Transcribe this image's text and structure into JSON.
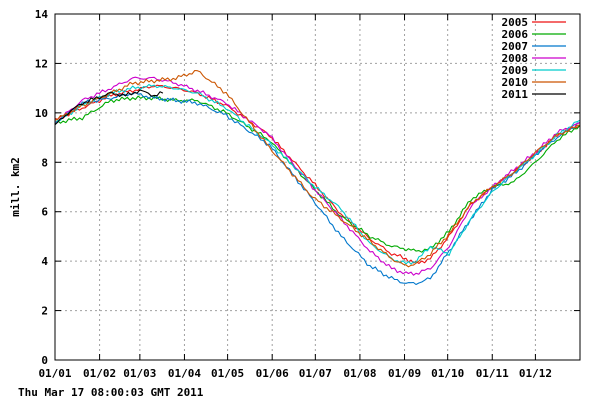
{
  "chart_data": {
    "type": "line",
    "ylabel": "mill. km2",
    "ylim": [
      0,
      14
    ],
    "yticks": [
      0,
      2,
      4,
      6,
      8,
      10,
      12,
      14
    ],
    "x_domain": [
      1,
      366
    ],
    "x_ticks": [
      {
        "label": "01/01",
        "day": 1
      },
      {
        "label": "01/02",
        "day": 32
      },
      {
        "label": "01/03",
        "day": 60
      },
      {
        "label": "01/04",
        "day": 91
      },
      {
        "label": "01/05",
        "day": 121
      },
      {
        "label": "01/06",
        "day": 152
      },
      {
        "label": "01/07",
        "day": 182
      },
      {
        "label": "01/08",
        "day": 213
      },
      {
        "label": "01/09",
        "day": 244
      },
      {
        "label": "01/10",
        "day": 274
      },
      {
        "label": "01/11",
        "day": 305
      },
      {
        "label": "01/12",
        "day": 335
      }
    ],
    "legend_position": "top-right",
    "series": [
      {
        "name": "2005",
        "color": "#ee1111",
        "x": [
          1,
          20,
          40,
          55,
          70,
          85,
          100,
          120,
          150,
          180,
          200,
          220,
          235,
          245,
          252,
          262,
          275,
          290,
          305,
          320,
          335,
          350,
          366
        ],
        "values": [
          9.7,
          10.2,
          10.7,
          10.9,
          11.1,
          11.0,
          10.8,
          10.3,
          9.1,
          7.2,
          5.9,
          4.9,
          4.3,
          4.1,
          3.9,
          4.1,
          5.0,
          6.3,
          7.0,
          7.6,
          8.3,
          9.1,
          9.5
        ]
      },
      {
        "name": "2006",
        "color": "#00aa00",
        "x": [
          1,
          20,
          40,
          55,
          70,
          85,
          100,
          120,
          150,
          180,
          200,
          220,
          235,
          245,
          252,
          262,
          275,
          290,
          305,
          320,
          335,
          350,
          366
        ],
        "values": [
          9.6,
          9.8,
          10.5,
          10.6,
          10.6,
          10.5,
          10.5,
          10.0,
          8.9,
          7.0,
          5.8,
          5.0,
          4.6,
          4.5,
          4.4,
          4.5,
          5.2,
          6.5,
          7.0,
          7.2,
          8.0,
          8.9,
          9.5
        ]
      },
      {
        "name": "2007",
        "color": "#0077cc",
        "x": [
          1,
          20,
          40,
          55,
          70,
          85,
          100,
          120,
          150,
          180,
          200,
          220,
          235,
          245,
          252,
          262,
          275,
          290,
          305,
          320,
          335,
          350,
          366
        ],
        "values": [
          9.6,
          10.4,
          10.6,
          10.8,
          10.6,
          10.5,
          10.4,
          9.9,
          8.7,
          6.5,
          5.0,
          3.8,
          3.3,
          3.1,
          3.1,
          3.3,
          4.4,
          5.7,
          6.9,
          7.5,
          8.3,
          9.0,
          9.6
        ]
      },
      {
        "name": "2008",
        "color": "#cc00cc",
        "x": [
          1,
          20,
          40,
          55,
          70,
          85,
          100,
          120,
          150,
          180,
          200,
          220,
          235,
          245,
          252,
          262,
          275,
          290,
          305,
          320,
          335,
          350,
          366
        ],
        "values": [
          9.6,
          10.5,
          11.0,
          11.4,
          11.4,
          11.2,
          10.9,
          10.4,
          9.1,
          7.0,
          5.7,
          4.4,
          3.7,
          3.5,
          3.5,
          3.7,
          4.6,
          6.2,
          7.0,
          7.7,
          8.4,
          9.2,
          9.6
        ]
      },
      {
        "name": "2009",
        "color": "#00cccc",
        "x": [
          1,
          20,
          40,
          55,
          70,
          85,
          100,
          120,
          150,
          180,
          200,
          220,
          235,
          245,
          252,
          262,
          275,
          290,
          305,
          320,
          335,
          350,
          366
        ],
        "values": [
          9.6,
          10.3,
          10.8,
          11.0,
          11.1,
          11.0,
          10.8,
          10.2,
          8.8,
          7.1,
          6.1,
          4.7,
          4.1,
          3.9,
          4.0,
          4.6,
          4.3,
          5.7,
          6.8,
          7.6,
          8.3,
          9.1,
          9.7
        ]
      },
      {
        "name": "2010",
        "color": "#cc5500",
        "x": [
          1,
          20,
          40,
          55,
          70,
          85,
          100,
          120,
          150,
          180,
          200,
          220,
          235,
          245,
          252,
          262,
          275,
          290,
          305,
          320,
          335,
          350,
          366
        ],
        "values": [
          9.7,
          10.3,
          10.8,
          11.2,
          11.3,
          11.4,
          11.7,
          10.8,
          8.6,
          6.6,
          5.7,
          4.8,
          4.1,
          3.8,
          3.9,
          4.3,
          5.1,
          6.3,
          7.0,
          7.6,
          8.4,
          9.1,
          9.5
        ]
      },
      {
        "name": "2011",
        "color": "#000000",
        "x": [
          1,
          10,
          20,
          30,
          40,
          50,
          60,
          70,
          76
        ],
        "values": [
          9.5,
          10.0,
          10.4,
          10.6,
          10.8,
          10.7,
          10.9,
          10.7,
          10.8
        ]
      }
    ]
  },
  "footer": {
    "timestamp": "Thu Mar 17 08:00:03 GMT 2011"
  }
}
